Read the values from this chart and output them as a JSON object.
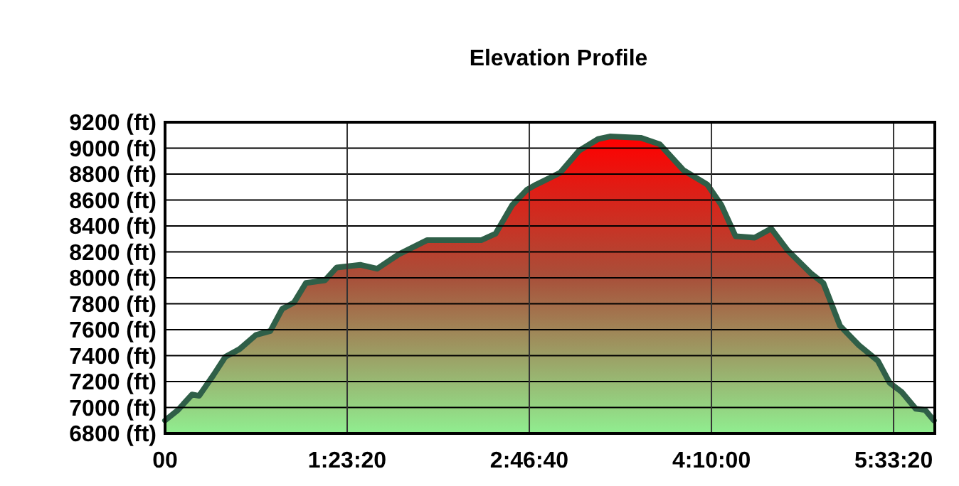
{
  "chart_data": {
    "type": "area",
    "title": "Elevation Profile",
    "x": [
      0,
      0.098,
      0.206,
      0.26,
      0.369,
      0.459,
      0.568,
      0.694,
      0.803,
      0.893,
      0.984,
      1.074,
      1.219,
      1.309,
      1.49,
      1.617,
      1.78,
      1.997,
      2.41,
      2.52,
      2.647,
      2.76,
      2.832,
      3.013,
      3.157,
      3.302,
      3.392,
      3.627,
      3.772,
      3.953,
      4.134,
      4.243,
      4.351,
      4.496,
      4.622,
      4.749,
      4.93,
      5.02,
      5.147,
      5.291,
      5.436,
      5.526,
      5.617,
      5.725,
      5.797,
      5.863
    ],
    "series": [
      {
        "color": "#2f5f48",
        "values": [
          6900,
          6980,
          7100,
          7090,
          7250,
          7390,
          7450,
          7560,
          7590,
          7760,
          7810,
          7960,
          7980,
          8080,
          8100,
          8070,
          8180,
          8290,
          8290,
          8340,
          8560,
          8680,
          8720,
          8810,
          8980,
          9070,
          9090,
          9080,
          9030,
          8830,
          8720,
          8560,
          8320,
          8310,
          8380,
          8210,
          8030,
          7960,
          7630,
          7480,
          7360,
          7190,
          7120,
          6990,
          6980,
          6900
        ]
      }
    ],
    "xlim": [
      0,
      5.87
    ],
    "xticks": [
      {
        "value": 0,
        "label": "00"
      },
      {
        "value": 1.3889,
        "label": "1:23:20"
      },
      {
        "value": 2.7778,
        "label": "2:46:40"
      },
      {
        "value": 4.1667,
        "label": "4:10:00"
      },
      {
        "value": 5.5556,
        "label": "5:33:20"
      }
    ],
    "ylim": [
      6800,
      9200
    ],
    "yticks": [
      {
        "value": 6800,
        "label": "6800 (ft)"
      },
      {
        "value": 7000,
        "label": "7000 (ft)"
      },
      {
        "value": 7200,
        "label": "7200 (ft)"
      },
      {
        "value": 7400,
        "label": "7400 (ft)"
      },
      {
        "value": 7600,
        "label": "7600 (ft)"
      },
      {
        "value": 7800,
        "label": "7800 (ft)"
      },
      {
        "value": 8000,
        "label": "8000 (ft)"
      },
      {
        "value": 8200,
        "label": "8200 (ft)"
      },
      {
        "value": 8400,
        "label": "8400 (ft)"
      },
      {
        "value": 8600,
        "label": "8600 (ft)"
      },
      {
        "value": 8800,
        "label": "8800 (ft)"
      },
      {
        "value": 9000,
        "label": "9000 (ft)"
      },
      {
        "value": 9200,
        "label": "9200 (ft)"
      }
    ],
    "grid": true
  }
}
